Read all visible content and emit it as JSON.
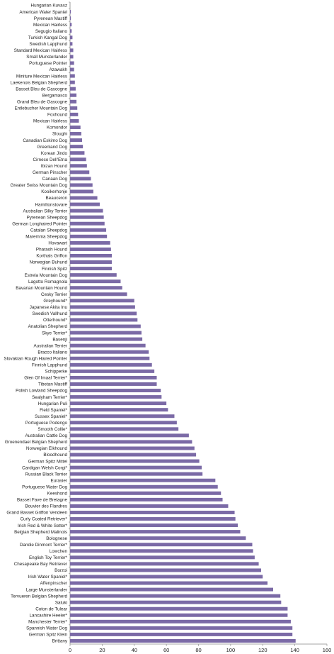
{
  "chart_data": {
    "type": "bar",
    "orientation": "horizontal",
    "title": "",
    "xlabel": "",
    "ylabel": "",
    "xlim": [
      0,
      160
    ],
    "x_ticks": [
      0,
      20,
      40,
      60,
      80,
      100,
      120,
      140,
      160
    ],
    "grid": false,
    "legend": "none",
    "bar_color": "#7B6AA6",
    "categories": [
      "Hungarian Kuvasz",
      "American Water Spaniel",
      "Pyrenean Mastiff",
      "Mexican Hairless",
      "Segugio Italiano",
      "Turkish Kangal Dog",
      "Swedish Lapphund",
      "Standard Mexican Hairless",
      "Small Munsterlander",
      "Portuguese Pointer",
      "Azawakh",
      "Miniture Mexican Hairless",
      "Laekenois Belgian Shepherd",
      "Basset Bleu de Gascogne",
      "Bergamasco",
      "Grand Bleu de Gascogne",
      "Entlebucher Mountain Dog",
      "Foxhound",
      "Mexican Hairless",
      "Komondor",
      "Sloughi",
      "Canadian Eskimo Dog",
      "Greenland Dog",
      "Korean Jindo",
      "Cirneco Dell'Etna",
      "Ibizan Hound",
      "German Pinscher",
      "Canaan Dog",
      "Greater Swiss Mountain Dog",
      "Kooikerhonje",
      "Beauceron",
      "Hamiltonstovare",
      "Australian Silky Terrier",
      "Pyrenean Sheepdog",
      "German Longhaired Pointer",
      "Catalan Sheepdog",
      "Maremma Sheepdog",
      "Hovawart",
      "Pharaoh Hound",
      "Korthals Griffon",
      "Norwegian Buhund",
      "Finnish Spitz",
      "Estrela Mountain Dog",
      "Lagotto Romagnola",
      "Bavarian Mountain Hound",
      "Cesky Terrier",
      "Greyhound*",
      "Japanese Akita Inu",
      "Swedish Vallhund",
      "Otterhound*",
      "Anatolian Shepherd",
      "Skye Terrier*",
      "Basenji",
      "Australian Terrier",
      "Bracco Italiano",
      "Slovakian Rough Haired Pointer",
      "Finnish Lapphund",
      "Schipperke",
      "Glen Of Imaal Terrier*",
      "Tibetan Mastiff",
      "Polish Lowland Sheepdog",
      "Sealyham Terrier*",
      "Hungarian Puli",
      "Field Spaniel*",
      "Sussex Spaniel*",
      "Portuguese Podengo",
      "Smooth Collie*",
      "Australian Cattle Dog",
      "Groenendael Belgian Shepherd",
      "Norwegian Elkhound",
      "Bloodhound",
      "German Spitz Mittel",
      "Cardigan Welsh Corgi*",
      "Russian Black Terrier",
      "Eurasier",
      "Portuguese Water Dog",
      "Keeshond",
      "Basset Fave de Bretagne",
      "Bouvier des Flandres",
      "Grand Basset Griffon Vendeen",
      "Curly Coated Retriever*",
      "Irish Red & White Setter*",
      "Belgian Shepherd Malinois",
      "Bolognese",
      "Dandie Dinmont Terrier*",
      "Lowchen",
      "English Toy Terrier*",
      "Chesapeake Bay Retriever",
      "Borzoi",
      "Irish Water Spaniel*",
      "Affenpinscher",
      "Large Munsterlander",
      "Tervueren Belgian Shepherd",
      "Saluki",
      "Coton de Tulear",
      "Lancashire Heeler*",
      "Manchester Terrier*",
      "Spannish Water Dog",
      "German Spitz Klein",
      "Brittany"
    ],
    "values": [
      0,
      0.5,
      0.5,
      1,
      1,
      1.5,
      1.5,
      2,
      2,
      2.5,
      2.5,
      3,
      3,
      3.5,
      4,
      4,
      4.5,
      5,
      5.5,
      6.5,
      7,
      7.5,
      8,
      9,
      10,
      10.5,
      12,
      13,
      14,
      14.5,
      17,
      18.5,
      20.5,
      21,
      21.5,
      22.5,
      23,
      25,
      25.5,
      26,
      26,
      26,
      29,
      31.5,
      32.5,
      35.5,
      40,
      40.5,
      41.5,
      42,
      44,
      44.5,
      45,
      47,
      49,
      49.5,
      51,
      52.5,
      54,
      54,
      56.5,
      57,
      60,
      61,
      65,
      66.5,
      67.5,
      74,
      76,
      77.5,
      78.5,
      80.5,
      82,
      82.5,
      90.5,
      92,
      94,
      95,
      98.5,
      102.5,
      103,
      104.5,
      106,
      109.5,
      113.5,
      114,
      115,
      117.5,
      119,
      120,
      123,
      126.5,
      131,
      131.5,
      135.5,
      135.5,
      137.5,
      138.5,
      138.5,
      140.5
    ]
  }
}
